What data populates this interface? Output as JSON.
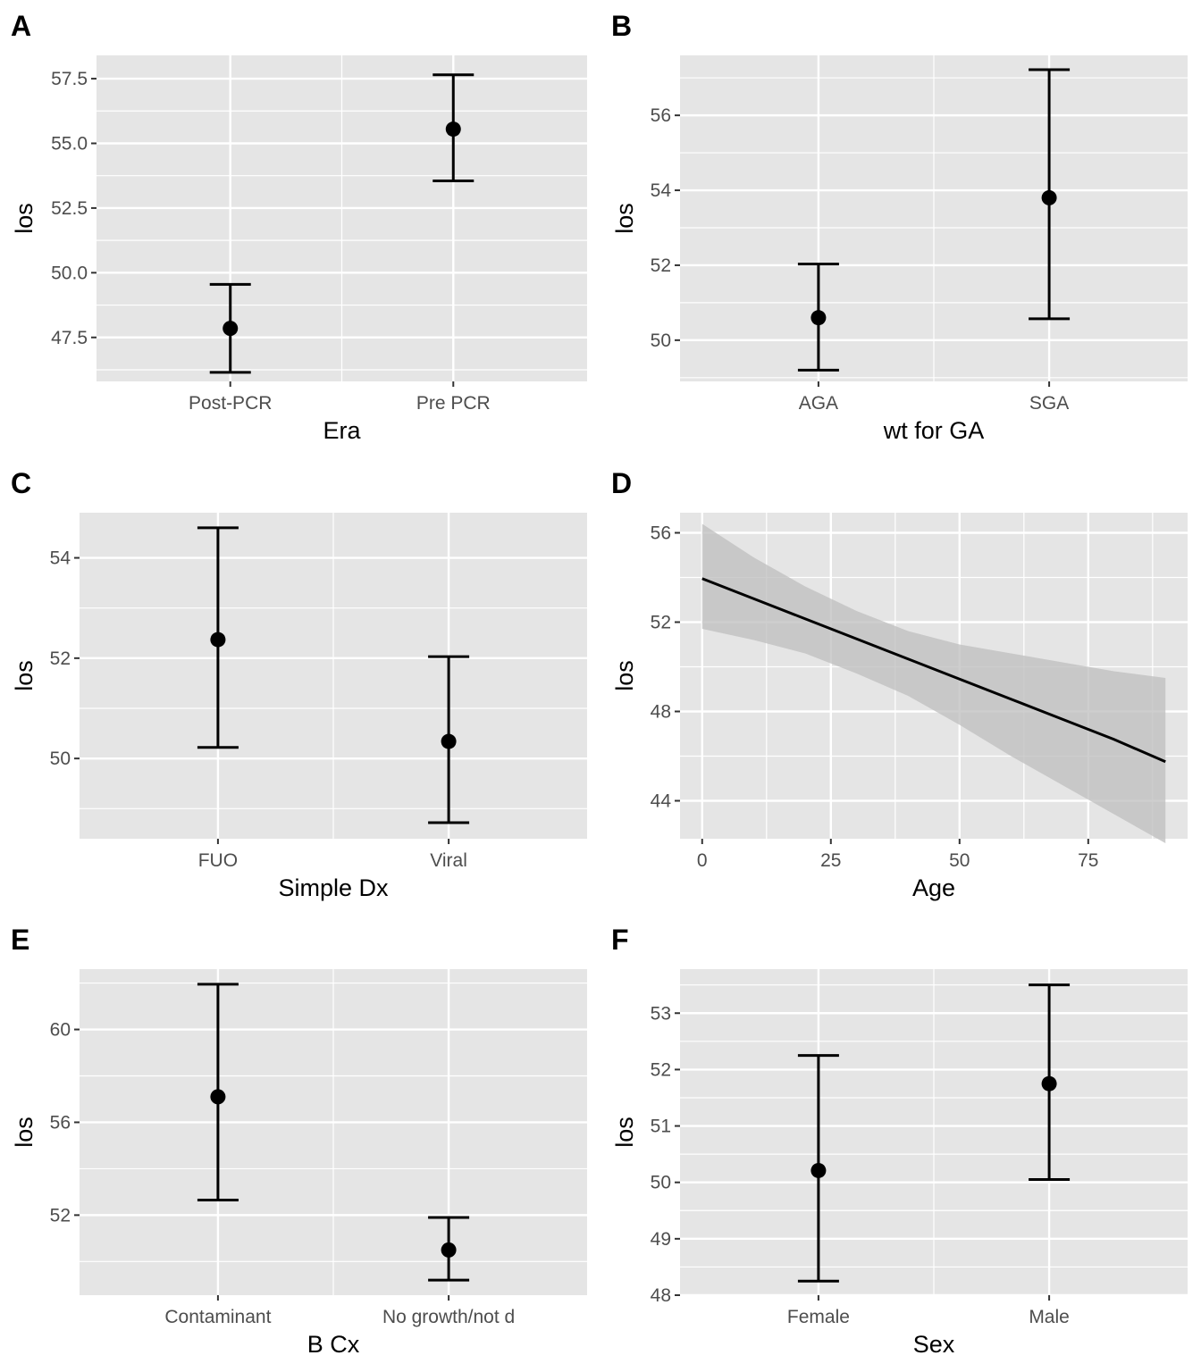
{
  "chart_data": [
    {
      "panel": "A",
      "type": "scatter",
      "subtype": "point-errorbar",
      "xlabel": "Era",
      "ylabel": "los",
      "categories": [
        "Post-PCR",
        "Pre PCR"
      ],
      "estimate": [
        47.85,
        55.55
      ],
      "lower": [
        46.15,
        53.55
      ],
      "upper": [
        49.55,
        57.65
      ],
      "ylim": [
        45.8,
        58.4
      ],
      "yticks": [
        47.5,
        50.0,
        52.5,
        55.0,
        57.5
      ],
      "ytick_labels": [
        "47.5",
        "50.0",
        "52.5",
        "55.0",
        "57.5"
      ],
      "grid": true
    },
    {
      "panel": "B",
      "type": "scatter",
      "subtype": "point-errorbar",
      "xlabel": "wt for GA",
      "ylabel": "los",
      "categories": [
        "AGA",
        "SGA"
      ],
      "estimate": [
        50.6,
        53.8
      ],
      "lower": [
        49.2,
        50.57
      ],
      "upper": [
        52.03,
        57.22
      ],
      "ylim": [
        48.9,
        57.6
      ],
      "yticks": [
        50,
        52,
        54,
        56
      ],
      "ytick_labels": [
        "50",
        "52",
        "54",
        "56"
      ],
      "grid": true
    },
    {
      "panel": "C",
      "type": "scatter",
      "subtype": "point-errorbar",
      "xlabel": "Simple Dx",
      "ylabel": "los",
      "categories": [
        "FUO",
        "Viral"
      ],
      "estimate": [
        52.37,
        50.34
      ],
      "lower": [
        50.22,
        48.72
      ],
      "upper": [
        54.6,
        52.03
      ],
      "ylim": [
        48.4,
        54.9
      ],
      "yticks": [
        50,
        52,
        54
      ],
      "ytick_labels": [
        "50",
        "52",
        "54"
      ],
      "grid": true
    },
    {
      "panel": "D",
      "type": "line",
      "subtype": "regression-ribbon",
      "xlabel": "Age",
      "ylabel": "los",
      "x": [
        0,
        10,
        20,
        30,
        40,
        50,
        60,
        70,
        80,
        90
      ],
      "fit": [
        53.95,
        53.05,
        52.15,
        51.25,
        50.35,
        49.45,
        48.55,
        47.65,
        46.75,
        45.75
      ],
      "lower": [
        51.7,
        51.2,
        50.6,
        49.7,
        48.7,
        47.4,
        46.0,
        44.7,
        43.4,
        42.1
      ],
      "upper": [
        56.4,
        54.9,
        53.6,
        52.5,
        51.6,
        51.0,
        50.6,
        50.2,
        49.8,
        49.5
      ],
      "xlim": [
        -4.3,
        94.3
      ],
      "ylim": [
        42.3,
        56.9
      ],
      "xticks": [
        0,
        25,
        50,
        75
      ],
      "xtick_labels": [
        "0",
        "25",
        "50",
        "75"
      ],
      "yticks": [
        44,
        48,
        52,
        56
      ],
      "ytick_labels": [
        "44",
        "48",
        "52",
        "56"
      ],
      "grid": true
    },
    {
      "panel": "E",
      "type": "scatter",
      "subtype": "point-errorbar",
      "xlabel": "B Cx",
      "ylabel": "los",
      "categories": [
        "Contaminant",
        "No growth/not d"
      ],
      "estimate": [
        57.1,
        50.5
      ],
      "lower": [
        52.65,
        49.2
      ],
      "upper": [
        61.95,
        51.9
      ],
      "ylim": [
        48.55,
        62.6
      ],
      "yticks": [
        52,
        56,
        60
      ],
      "ytick_labels": [
        "52",
        "56",
        "60"
      ],
      "grid": true
    },
    {
      "panel": "F",
      "type": "scatter",
      "subtype": "point-errorbar",
      "xlabel": "Sex",
      "ylabel": "los",
      "categories": [
        "Female",
        "Male"
      ],
      "estimate": [
        50.21,
        51.75
      ],
      "lower": [
        48.25,
        50.05
      ],
      "upper": [
        52.25,
        53.5
      ],
      "ylim": [
        48.0,
        53.78
      ],
      "yticks": [
        48,
        49,
        50,
        51,
        52,
        53
      ],
      "ytick_labels": [
        "48",
        "49",
        "50",
        "51",
        "52",
        "53"
      ],
      "grid": true
    }
  ],
  "colors": {
    "panel_background": "#e5e5e5",
    "grid": "#ffffff",
    "mark": "#000000",
    "ribbon": "#bdbdbd",
    "tick_text": "#4d4d4d"
  }
}
